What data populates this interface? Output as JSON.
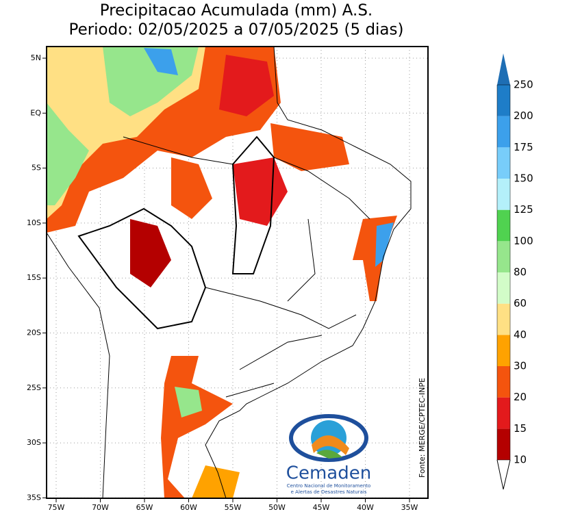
{
  "title": [
    "Precipitacao Acumulada (mm) A.S.",
    "Periodo: 02/05/2025 a 07/05/2025 (5 dias)"
  ],
  "map": {
    "lat_labels": [
      "5N",
      "EQ",
      "5S",
      "10S",
      "15S",
      "20S",
      "25S",
      "30S",
      "35S"
    ],
    "lon_labels": [
      "75W",
      "70W",
      "65W",
      "60W",
      "55W",
      "50W",
      "45W",
      "40W",
      "35W"
    ],
    "source": "Fonte: MERGE/CPTEC-INPE"
  },
  "colorbar": {
    "levels": [
      10,
      15,
      20,
      30,
      40,
      60,
      80,
      100,
      125,
      150,
      175,
      200,
      250
    ],
    "colors": [
      "#b40000",
      "#e31a1c",
      "#f4540e",
      "#ffa200",
      "#ffe084",
      "#d2fcc8",
      "#96e68c",
      "#50d250",
      "#b4f0fa",
      "#78cdfa",
      "#3ca0eb",
      "#1e7dc8"
    ],
    "over_color": "#1e6eb4"
  },
  "logo": {
    "name": "Cemaden",
    "line1": "Centro Nacional de Monitoramento",
    "line2": "e Alertas de Desastres Naturais"
  }
}
